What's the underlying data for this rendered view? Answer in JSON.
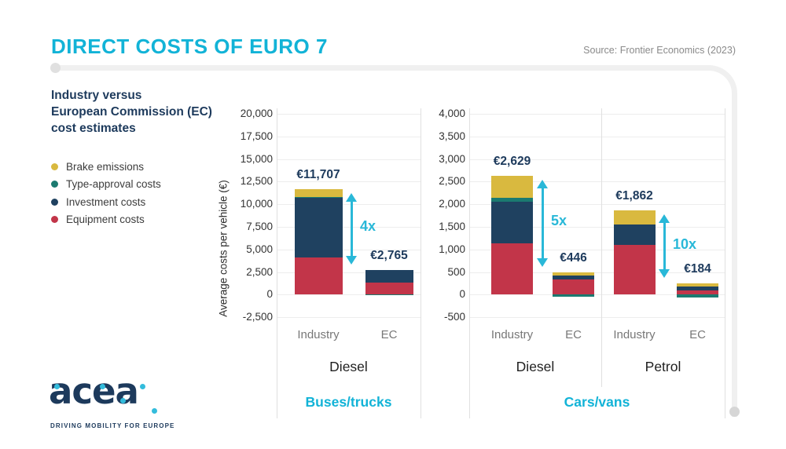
{
  "header": {
    "title": "DIRECT COSTS OF EURO 7",
    "source": "Source: Frontier Economics (2023)"
  },
  "sidebar": {
    "subtitle_lines": [
      "Industry versus",
      "European Commission (EC)",
      "cost estimates"
    ],
    "legend": [
      {
        "name": "brake",
        "label": "Brake emissions",
        "color": "#d9b93f"
      },
      {
        "name": "type_approval",
        "label": "Type-approval costs",
        "color": "#1b7a70"
      },
      {
        "name": "investment",
        "label": "Investment costs",
        "color": "#1f4160"
      },
      {
        "name": "equipment",
        "label": "Equipment costs",
        "color": "#c23549"
      }
    ]
  },
  "colors": {
    "accent_cyan": "#12b3d7",
    "arrow_cyan": "#29b8d8",
    "navy_text": "#1d3a5c",
    "muted_text": "#787878",
    "grid": "#ededed"
  },
  "logo": {
    "text": "acea",
    "tagline": "DRIVING MOBILITY FOR EUROPE"
  },
  "chart_data": [
    {
      "type": "bar",
      "stacked": true,
      "title": "Buses/trucks",
      "ylabel": "Average costs per vehicle (€)",
      "ylim": [
        -2500,
        20000
      ],
      "ytick_step": 2500,
      "grid": true,
      "groups": [
        {
          "label": "Diesel",
          "multiplier": "4x",
          "bars": [
            {
              "label": "Industry",
              "total": 11707,
              "total_label": "€11,707",
              "segments": [
                [
                  "equipment",
                  4100
                ],
                [
                  "investment",
                  6650
                ],
                [
                  "type_approval",
                  50
                ],
                [
                  "brake",
                  907
                ]
              ]
            },
            {
              "label": "EC",
              "total": 2765,
              "total_label": "€2,765",
              "segments": [
                [
                  "type_approval",
                  50
                ],
                [
                  "equipment",
                  1300
                ],
                [
                  "investment",
                  1415
                ]
              ]
            }
          ]
        }
      ]
    },
    {
      "type": "bar",
      "stacked": true,
      "title": "Cars/vans",
      "ylabel": "",
      "ylim": [
        -500,
        4000
      ],
      "ytick_step": 500,
      "grid": true,
      "groups": [
        {
          "label": "Diesel",
          "multiplier": "5x",
          "bars": [
            {
              "label": "Industry",
              "total": 2629,
              "total_label": "€2,629",
              "segments": [
                [
                  "equipment",
                  1135
                ],
                [
                  "investment",
                  915
                ],
                [
                  "type_approval",
                  90
                ],
                [
                  "brake",
                  489
                ]
              ]
            },
            {
              "label": "EC",
              "total": 446,
              "total_label": "€446",
              "segments": [
                [
                  "type_approval",
                  -50
                ],
                [
                  "equipment",
                  330
                ],
                [
                  "investment",
                  100
                ],
                [
                  "brake",
                  66
                ]
              ]
            }
          ]
        },
        {
          "label": "Petrol",
          "multiplier": "10x",
          "bars": [
            {
              "label": "Industry",
              "total": 1862,
              "total_label": "€1,862",
              "segments": [
                [
                  "equipment",
                  1100
                ],
                [
                  "investment",
                  445
                ],
                [
                  "brake",
                  317
                ]
              ]
            },
            {
              "label": "EC",
              "total": 184,
              "total_label": "€184",
              "segments": [
                [
                  "type_approval",
                  -60
                ],
                [
                  "equipment",
                  90
                ],
                [
                  "investment",
                  90
                ],
                [
                  "brake",
                  64
                ]
              ]
            }
          ]
        }
      ]
    }
  ]
}
